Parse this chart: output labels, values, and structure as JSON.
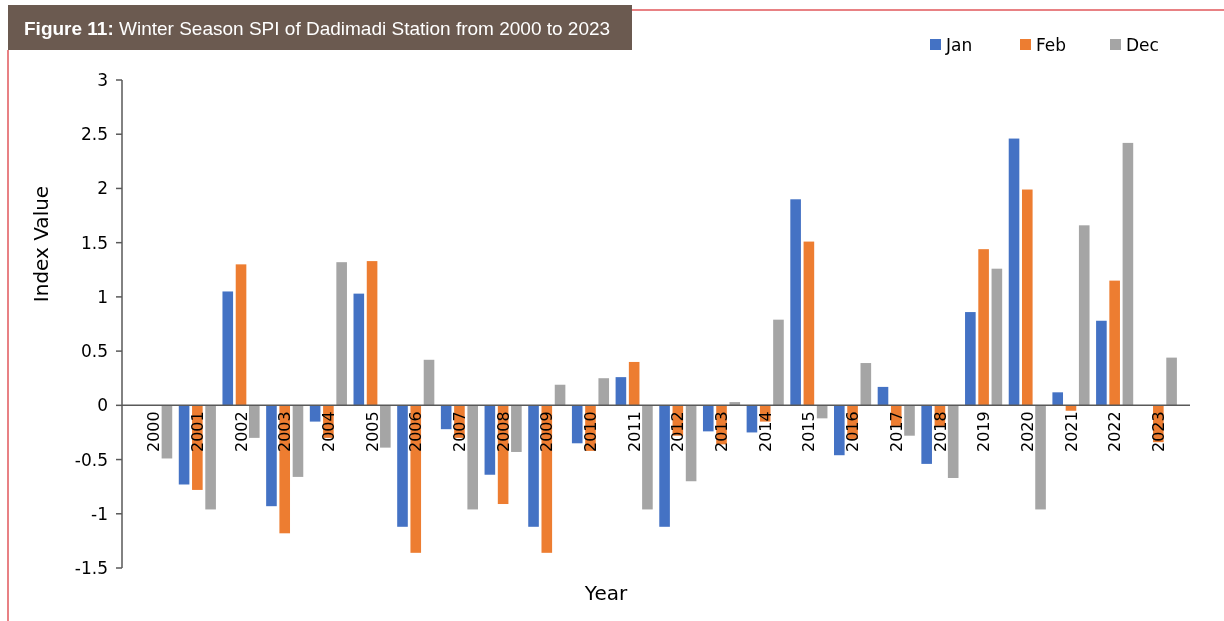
{
  "chart_data": {
    "type": "bar",
    "title": "Figure 11: Winter Season SPI of Dadimadi Station from 2000 to 2023",
    "xlabel": "Year",
    "ylabel": "Index Value",
    "categories": [
      "2000",
      "2001",
      "2002",
      "2003",
      "2004",
      "2005",
      "2006",
      "2007",
      "2008",
      "2009",
      "2010",
      "2011",
      "2012",
      "2013",
      "2014",
      "2015",
      "2016",
      "2017",
      "2018",
      "2019",
      "2020",
      "2021",
      "2022",
      "2023"
    ],
    "series": [
      {
        "name": "Jan",
        "color": "#4472c4",
        "values": [
          0,
          -0.73,
          1.05,
          -0.93,
          -0.15,
          1.03,
          -1.12,
          -0.22,
          -0.64,
          -1.12,
          -0.35,
          0.26,
          -1.12,
          -0.24,
          -0.25,
          1.9,
          -0.46,
          0.17,
          -0.54,
          0.86,
          2.46,
          0.12,
          0.78,
          0
        ]
      },
      {
        "name": "Feb",
        "color": "#ed7d31",
        "values": [
          0,
          -0.78,
          1.3,
          -1.18,
          -0.3,
          1.33,
          -1.36,
          -0.3,
          -0.91,
          -1.36,
          -0.42,
          0.4,
          -0.28,
          -0.36,
          -0.15,
          1.51,
          -0.31,
          -0.19,
          -0.19,
          1.44,
          1.99,
          -0.05,
          1.15,
          -0.34
        ]
      },
      {
        "name": "Dec",
        "color": "#a5a5a5",
        "values": [
          -0.49,
          -0.96,
          -0.3,
          -0.66,
          1.32,
          -0.39,
          0.42,
          -0.96,
          -0.43,
          0.19,
          0.25,
          -0.96,
          -0.7,
          0.03,
          0.79,
          -0.12,
          0.39,
          -0.28,
          -0.67,
          1.26,
          -0.96,
          1.66,
          2.42,
          0.44
        ]
      }
    ],
    "ylim": [
      -1.5,
      3
    ],
    "yticks": [
      -1.5,
      -1,
      -0.5,
      0,
      0.5,
      1,
      1.5,
      2,
      2.5,
      3
    ],
    "legend": "top right"
  }
}
